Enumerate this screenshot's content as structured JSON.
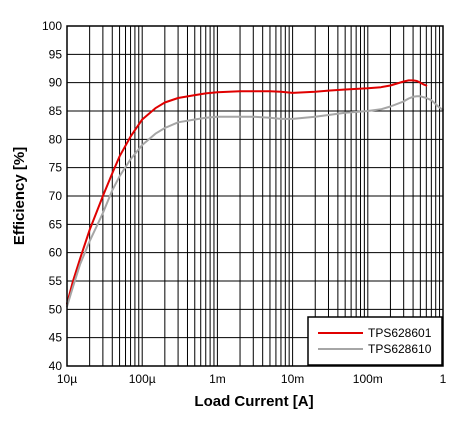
{
  "chart_data": {
    "type": "line",
    "title": "",
    "xlabel": "Load Current [A]",
    "ylabel": "Efficiency [%]",
    "x_scale": "log",
    "xlim": [
      1e-05,
      1
    ],
    "ylim": [
      40,
      100
    ],
    "grid": true,
    "legend_position": "bottom-right",
    "x_ticks": [
      {
        "value": 1e-05,
        "label": "10µ"
      },
      {
        "value": 0.0001,
        "label": "100µ"
      },
      {
        "value": 0.001,
        "label": "1m"
      },
      {
        "value": 0.01,
        "label": "10m"
      },
      {
        "value": 0.1,
        "label": "100m"
      },
      {
        "value": 1,
        "label": "1"
      }
    ],
    "y_ticks": [
      40,
      45,
      50,
      55,
      60,
      65,
      70,
      75,
      80,
      85,
      90,
      95,
      100
    ],
    "series": [
      {
        "name": "TPS628601",
        "color": "#e00000",
        "x": [
          1e-05,
          1.2e-05,
          1.5e-05,
          2e-05,
          3e-05,
          4e-05,
          5e-05,
          7e-05,
          0.0001,
          0.00015,
          0.0002,
          0.0003,
          0.0005,
          0.0007,
          0.001,
          0.002,
          0.003,
          0.005,
          0.007,
          0.01,
          0.02,
          0.03,
          0.05,
          0.1,
          0.15,
          0.2,
          0.3,
          0.35,
          0.4,
          0.45,
          0.5,
          0.55,
          0.6
        ],
        "y": [
          51,
          55,
          59,
          64,
          70,
          74,
          77,
          80.5,
          83.5,
          85.5,
          86.5,
          87.3,
          87.8,
          88.1,
          88.3,
          88.5,
          88.5,
          88.5,
          88.4,
          88.2,
          88.4,
          88.6,
          88.8,
          89,
          89.2,
          89.5,
          90.2,
          90.4,
          90.4,
          90.3,
          90,
          89.7,
          89.5
        ]
      },
      {
        "name": "TPS628610",
        "color": "#a6a6a6",
        "x": [
          1e-05,
          1.2e-05,
          1.5e-05,
          2e-05,
          3e-05,
          4e-05,
          5e-05,
          7e-05,
          0.0001,
          0.00015,
          0.0002,
          0.0003,
          0.0005,
          0.0007,
          0.001,
          0.002,
          0.003,
          0.005,
          0.007,
          0.01,
          0.02,
          0.03,
          0.05,
          0.1,
          0.15,
          0.2,
          0.3,
          0.35,
          0.4,
          0.45,
          0.5,
          0.6,
          0.7,
          0.8,
          0.9,
          1
        ],
        "y": [
          50.5,
          54,
          58,
          62,
          67,
          71,
          73.5,
          76.5,
          79,
          81,
          82,
          83,
          83.5,
          83.8,
          84,
          84,
          84,
          83.8,
          83.6,
          83.6,
          84,
          84.3,
          84.7,
          85,
          85.3,
          85.8,
          86.7,
          87.2,
          87.5,
          87.6,
          87.6,
          87.3,
          86.9,
          86.2,
          85.6,
          85.2
        ]
      }
    ]
  }
}
